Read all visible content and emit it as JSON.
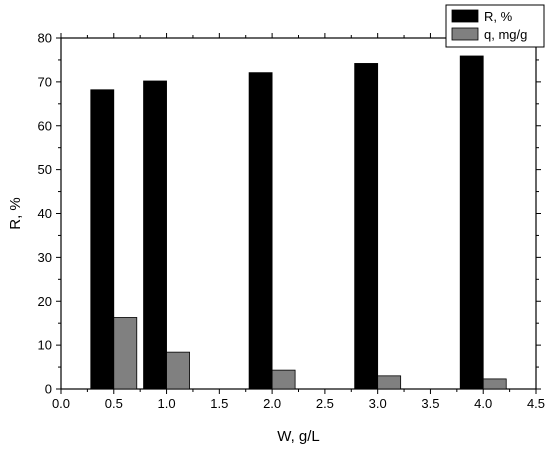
{
  "chart_data": {
    "type": "bar",
    "xlabel": "W, g/L",
    "ylabel": "R, %",
    "xlim": [
      0.0,
      4.5
    ],
    "ylim": [
      0,
      80
    ],
    "x_ticks": [
      "0.0",
      "0.5",
      "1.0",
      "1.5",
      "2.0",
      "2.5",
      "3.0",
      "3.5",
      "4.0",
      "4.5"
    ],
    "y_ticks": [
      "0",
      "10",
      "20",
      "30",
      "40",
      "50",
      "60",
      "70",
      "80"
    ],
    "x": [
      0.5,
      1.0,
      2.0,
      3.0,
      4.0
    ],
    "series": [
      {
        "name": "R, %",
        "color": "#000000",
        "values": [
          68.2,
          70.2,
          72.1,
          74.2,
          75.9
        ]
      },
      {
        "name": "q, mg/g",
        "color": "#808080",
        "values": [
          16.3,
          8.4,
          4.3,
          3.0,
          2.3
        ]
      }
    ],
    "legend_position": "top-right",
    "grid": false
  }
}
